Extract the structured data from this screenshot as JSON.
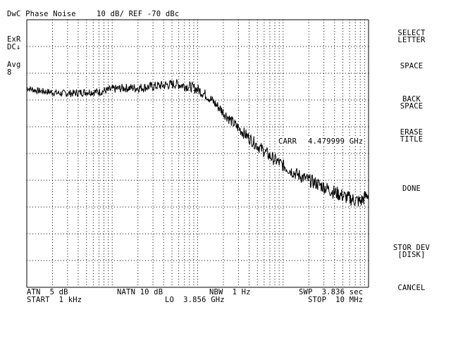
{
  "header": {
    "title": "DwC Phase Noise",
    "scale_ref": "10 dB/ REF -70 dBc"
  },
  "left_annotations": {
    "ext_ref": "ExR",
    "dc_coupling": "DC↓",
    "avg_label": "Avg",
    "avg_count": "8"
  },
  "marker": {
    "carr_label": "CARR",
    "carr_value": "4.479999 GHz"
  },
  "footer": {
    "atn": "ATN  5 dB",
    "natn": "NATN 10 dB",
    "nbw": "NBW  1 Hz",
    "swp": "SWP  3.836 sec",
    "start": "START  1 kHz",
    "lo": "LO  3.856 GHz",
    "stop": "STOP  10 MHz"
  },
  "softkeys": [
    {
      "line1": "SELECT",
      "line2": "LETTER"
    },
    {
      "line1": "SPACE",
      "line2": ""
    },
    {
      "line1": "BACK",
      "line2": "SPACE"
    },
    {
      "line1": "ERASE",
      "line2": "TITLE"
    },
    {
      "line1": "DONE",
      "line2": ""
    },
    {
      "line1": "STOR DEV",
      "line2": "[DISK]"
    },
    {
      "line1": "CANCEL",
      "line2": ""
    }
  ],
  "chart_data": {
    "type": "line",
    "x_scale": "log",
    "x_range_hz": [
      1000,
      10000000
    ],
    "y_range_dbc": [
      -170,
      -70
    ],
    "y_divisions": 10,
    "grid": true,
    "series": [
      {
        "x_hz": [
          1000,
          1300,
          1800,
          2500,
          3500,
          5000,
          7000,
          10000,
          14000,
          20000,
          28000,
          40000,
          56000,
          80000,
          100000,
          130000,
          180000,
          250000,
          350000,
          500000,
          700000,
          1000000,
          1400000,
          2000000,
          2800000,
          4000000,
          5600000,
          8000000,
          10000000
        ],
        "y_dbc": [
          -95.5,
          -96.5,
          -97.0,
          -97.5,
          -97.5,
          -97.0,
          -97.0,
          -96.0,
          -95.5,
          -95.5,
          -95.0,
          -94.5,
          -94.0,
          -95.0,
          -96.0,
          -98.5,
          -103.0,
          -108.0,
          -112.5,
          -117.0,
          -121.0,
          -124.5,
          -127.5,
          -130.0,
          -132.0,
          -134.5,
          -136.5,
          -138.0,
          -135.0
        ]
      }
    ]
  }
}
